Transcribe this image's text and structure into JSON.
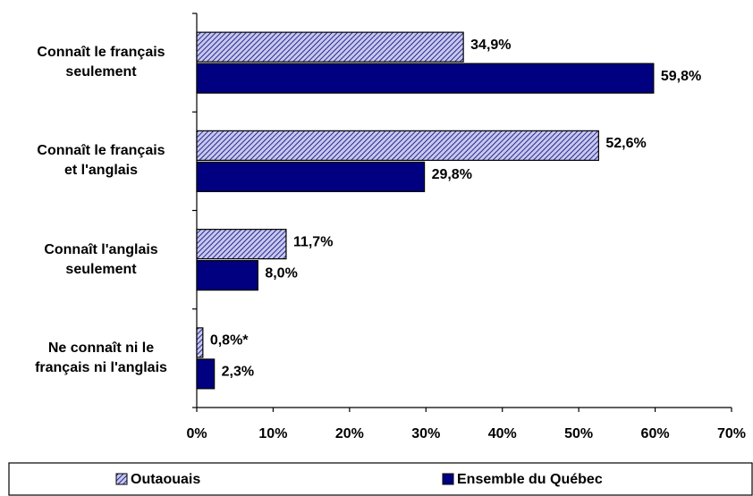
{
  "chart_data": {
    "type": "barh",
    "categories": [
      "Connaît le français\nseulement",
      "Connaît le français\net l'anglais",
      "Connaît l'anglais\nseulement",
      "Ne connaît ni le\nfrançais ni l'anglais"
    ],
    "series": [
      {
        "name": "Outaouais",
        "color": "#c8c8ec",
        "hatch": true,
        "values": [
          34.9,
          52.6,
          11.7,
          0.8
        ],
        "value_labels": [
          "34,9%",
          "52,6%",
          "11,7%",
          "0,8%*"
        ]
      },
      {
        "name": "Ensemble du Québec",
        "color": "#000080",
        "hatch": false,
        "values": [
          59.8,
          29.8,
          8.0,
          2.3
        ],
        "value_labels": [
          "59,8%",
          "29,8%",
          "8,0%",
          "2,3%"
        ]
      }
    ],
    "xlim": [
      0,
      70
    ],
    "xticks": [
      {
        "value": 0,
        "label": "0%"
      },
      {
        "value": 10,
        "label": "10%"
      },
      {
        "value": 20,
        "label": "20%"
      },
      {
        "value": 30,
        "label": "30%"
      },
      {
        "value": 40,
        "label": "40%"
      },
      {
        "value": 50,
        "label": "50%"
      },
      {
        "value": 60,
        "label": "60%"
      },
      {
        "value": 70,
        "label": "70%"
      }
    ],
    "legend": "bottom"
  }
}
